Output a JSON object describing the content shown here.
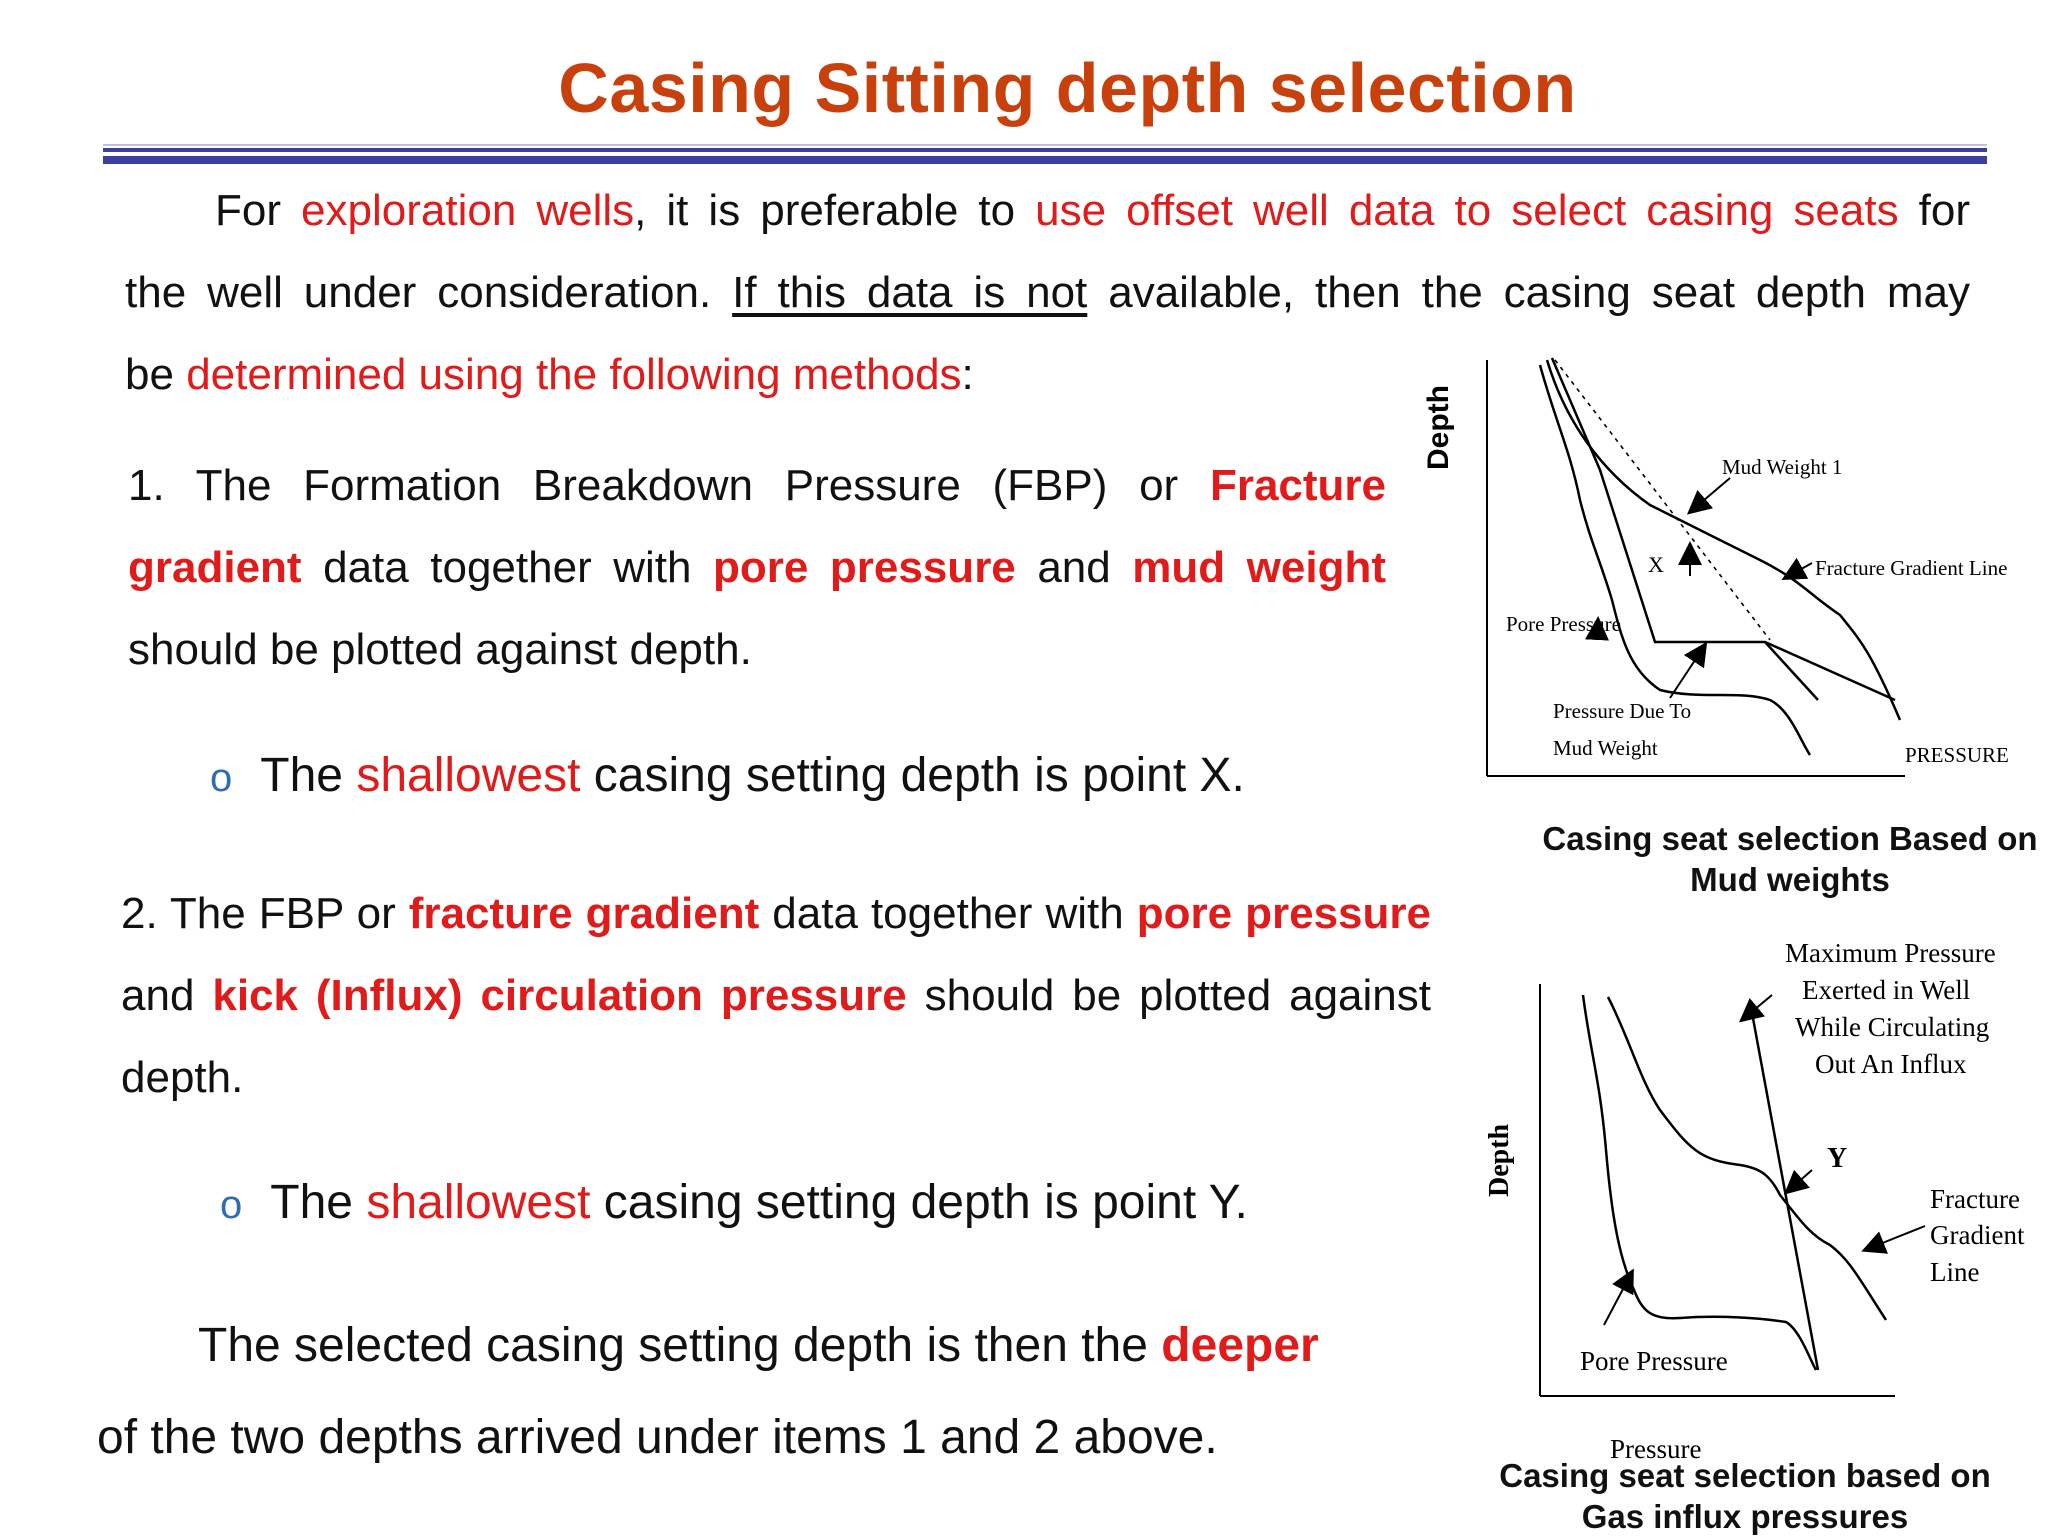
{
  "title": "Casing Sitting depth selection",
  "intro": {
    "p1": "For",
    "p2": "exploration wells",
    "p3": ", it is preferable to",
    "p4": "use offset well data to select casing seats",
    "p5": "for",
    "line2a": "the well under consideration.",
    "line2b": "If this data is not",
    "line2c": "available, then the casing seat depth may",
    "line3a": "be",
    "line3b": "determined using the following methods",
    "line3c": ":"
  },
  "item1": {
    "a": "1. The Formation Breakdown Pressure (FBP) or",
    "b": "Fracture gradient",
    "c": "data together with",
    "d": "pore pressure",
    "e": "and",
    "f": "mud weight",
    "g": "should be plotted against depth."
  },
  "bullet1": {
    "mark": "o",
    "a": "The",
    "b": "shallowest",
    "c": "casing setting depth is point X."
  },
  "item2": {
    "a": "2. The FBP or",
    "b": "fracture gradient",
    "c": "data together with",
    "d": "pore pressure",
    "e": "and",
    "f": "kick (Influx) circulation pressure",
    "g": "should be plotted against depth."
  },
  "bullet2": {
    "mark": "o",
    "a": "The",
    "b": "shallowest",
    "c": "casing setting depth is point Y."
  },
  "conclusion": {
    "a": "The selected casing setting depth is then the",
    "b": "deeper",
    "c": "of the two depths arrived under items 1 and 2 above."
  },
  "figure1": {
    "y_label": "Depth",
    "x_label": "PRESSURE",
    "mud_weight": "Mud Weight  1",
    "fracture_line": "Fracture Gradient Line",
    "point": "X",
    "pore_pressure": "Pore Pressure",
    "pressure_due_1": "Pressure Due To",
    "pressure_due_2": "Mud Weight",
    "caption_1": "Casing seat selection Based on",
    "caption_2": "Mud weights"
  },
  "figure2": {
    "y_label": "Depth",
    "x_label": "Pressure",
    "max_1": "Maximum  Pressure",
    "max_2": "Exerted  in Well",
    "max_3": "While Circulating",
    "max_4": "Out An Influx",
    "point": "Y",
    "frac_1": "Fracture",
    "frac_2": "Gradient",
    "frac_3": "Line",
    "pore_pressure": "Pore Pressure",
    "caption_1": "Casing seat selection based on",
    "caption_2": "Gas influx pressures"
  },
  "colors": {
    "title": "#c8410c",
    "emphasis": "#e11a1a",
    "rule": "#3d3fa0",
    "bullet": "#2e6db4"
  }
}
